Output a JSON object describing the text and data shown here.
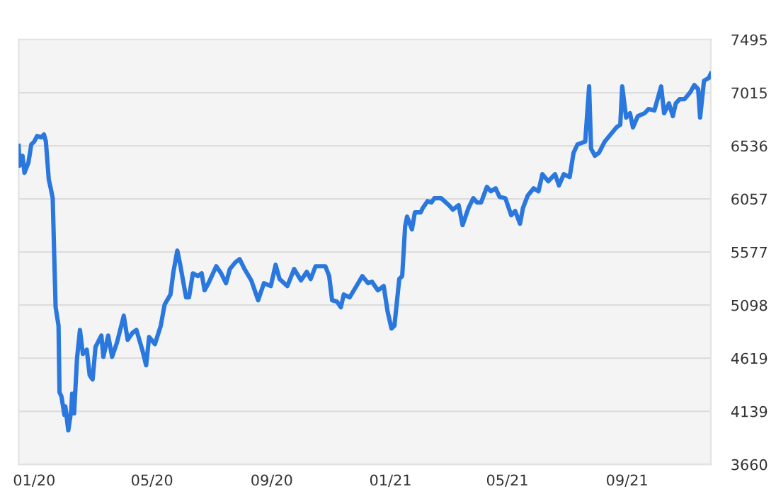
{
  "chart_data": {
    "type": "line",
    "color": "#2a78de",
    "grid": "y",
    "legend": false,
    "marker": "none",
    "line_style": "solid",
    "xlim": [
      "2019-12-16",
      "2021-11-26"
    ],
    "ylim": [
      3660,
      7495
    ],
    "yticks": [
      3660,
      4139,
      4619,
      5098,
      5577,
      6057,
      6536,
      7015,
      7495
    ],
    "xticks": [
      {
        "value": "2020-01-01",
        "label": "01/20"
      },
      {
        "value": "2020-05-01",
        "label": "05/20"
      },
      {
        "value": "2020-09-01",
        "label": "09/20"
      },
      {
        "value": "2021-01-01",
        "label": "01/21"
      },
      {
        "value": "2021-05-01",
        "label": "05/21"
      },
      {
        "value": "2021-09-01",
        "label": "09/21"
      }
    ],
    "x": [
      "2019-12-16",
      "2019-12-17",
      "2019-12-20",
      "2019-12-22",
      "2019-12-26",
      "2019-12-29",
      "2020-01-01",
      "2020-01-04",
      "2020-01-08",
      "2020-01-11",
      "2020-01-13",
      "2020-01-16",
      "2020-01-18",
      "2020-01-20",
      "2020-01-23",
      "2020-01-26",
      "2020-01-27",
      "2020-01-29",
      "2020-02-01",
      "2020-02-02",
      "2020-02-05",
      "2020-02-08",
      "2020-02-09",
      "2020-02-11",
      "2020-02-14",
      "2020-02-17",
      "2020-02-20",
      "2020-02-24",
      "2020-02-27",
      "2020-03-01",
      "2020-03-04",
      "2020-03-10",
      "2020-03-12",
      "2020-03-17",
      "2020-03-21",
      "2020-03-26",
      "2020-04-02",
      "2020-04-06",
      "2020-04-11",
      "2020-04-15",
      "2020-04-21",
      "2020-04-25",
      "2020-04-28",
      "2020-05-04",
      "2020-05-10",
      "2020-05-14",
      "2020-05-20",
      "2020-05-23",
      "2020-05-27",
      "2020-05-30",
      "2020-06-05",
      "2020-06-08",
      "2020-06-12",
      "2020-06-17",
      "2020-06-21",
      "2020-06-24",
      "2020-06-28",
      "2020-07-06",
      "2020-07-11",
      "2020-07-16",
      "2020-07-20",
      "2020-07-26",
      "2020-07-30",
      "2020-08-04",
      "2020-08-11",
      "2020-08-18",
      "2020-08-24",
      "2020-08-31",
      "2020-09-05",
      "2020-09-09",
      "2020-09-17",
      "2020-09-24",
      "2020-10-01",
      "2020-10-07",
      "2020-10-11",
      "2020-10-16",
      "2020-10-26",
      "2020-10-30",
      "2020-11-02",
      "2020-11-07",
      "2020-11-11",
      "2020-11-14",
      "2020-11-20",
      "2020-11-27",
      "2020-12-03",
      "2020-12-09",
      "2020-12-13",
      "2020-12-19",
      "2020-12-25",
      "2020-12-29",
      "2021-01-02",
      "2021-01-05",
      "2021-01-10",
      "2021-01-13",
      "2021-01-16",
      "2021-01-18",
      "2021-01-23",
      "2021-01-26",
      "2021-02-01",
      "2021-02-03",
      "2021-02-08",
      "2021-02-12",
      "2021-02-15",
      "2021-02-22",
      "2021-03-02",
      "2021-03-06",
      "2021-03-12",
      "2021-03-16",
      "2021-03-22",
      "2021-03-27",
      "2021-03-31",
      "2021-04-04",
      "2021-04-10",
      "2021-04-14",
      "2021-04-19",
      "2021-04-23",
      "2021-04-29",
      "2021-05-05",
      "2021-05-09",
      "2021-05-14",
      "2021-05-17",
      "2021-05-22",
      "2021-05-28",
      "2021-06-02",
      "2021-06-06",
      "2021-06-12",
      "2021-06-19",
      "2021-06-23",
      "2021-06-28",
      "2021-07-04",
      "2021-07-08",
      "2021-07-12",
      "2021-07-20",
      "2021-07-24",
      "2021-07-26",
      "2021-07-30",
      "2021-08-03",
      "2021-08-09",
      "2021-08-15",
      "2021-08-21",
      "2021-08-25",
      "2021-08-27",
      "2021-08-31",
      "2021-09-04",
      "2021-09-07",
      "2021-09-12",
      "2021-09-19",
      "2021-09-23",
      "2021-09-29",
      "2021-10-06",
      "2021-10-09",
      "2021-10-14",
      "2021-10-18",
      "2021-10-21",
      "2021-10-25",
      "2021-10-30",
      "2021-11-05",
      "2021-11-09",
      "2021-11-13",
      "2021-11-15",
      "2021-11-19",
      "2021-11-24",
      "2021-11-26"
    ],
    "values": [
      6536,
      6357,
      6446,
      6293,
      6382,
      6548,
      6574,
      6625,
      6612,
      6638,
      6574,
      6229,
      6152,
      6063,
      5079,
      4912,
      4312,
      4273,
      4107,
      4184,
      3967,
      4146,
      4299,
      4120,
      4619,
      4874,
      4657,
      4695,
      4465,
      4427,
      4721,
      4823,
      4631,
      4823,
      4631,
      4759,
      5002,
      4785,
      4848,
      4874,
      4695,
      4555,
      4810,
      4746,
      4912,
      5104,
      5194,
      5398,
      5590,
      5462,
      5168,
      5168,
      5385,
      5360,
      5385,
      5232,
      5296,
      5449,
      5385,
      5296,
      5424,
      5488,
      5513,
      5424,
      5321,
      5142,
      5296,
      5270,
      5462,
      5334,
      5270,
      5424,
      5321,
      5398,
      5334,
      5449,
      5449,
      5360,
      5142,
      5130,
      5079,
      5194,
      5168,
      5270,
      5360,
      5296,
      5309,
      5232,
      5270,
      5040,
      4887,
      4912,
      5334,
      5360,
      5807,
      5897,
      5781,
      5935,
      5935,
      5973,
      6037,
      6024,
      6063,
      6063,
      6000,
      5960,
      6000,
      5820,
      5973,
      6063,
      6024,
      6024,
      6165,
      6126,
      6152,
      6075,
      6063,
      5909,
      5948,
      5833,
      5973,
      6088,
      6152,
      6126,
      6280,
      6216,
      6280,
      6178,
      6280,
      6254,
      6472,
      6548,
      6574,
      7072,
      6510,
      6446,
      6472,
      6574,
      6638,
      6702,
      6727,
      7072,
      6791,
      6830,
      6702,
      6804,
      6830,
      6868,
      6855,
      7072,
      6830,
      6919,
      6804,
      6919,
      6957,
      6957,
      7021,
      7085,
      7047,
      6791,
      7123,
      7149,
      7187
    ]
  }
}
